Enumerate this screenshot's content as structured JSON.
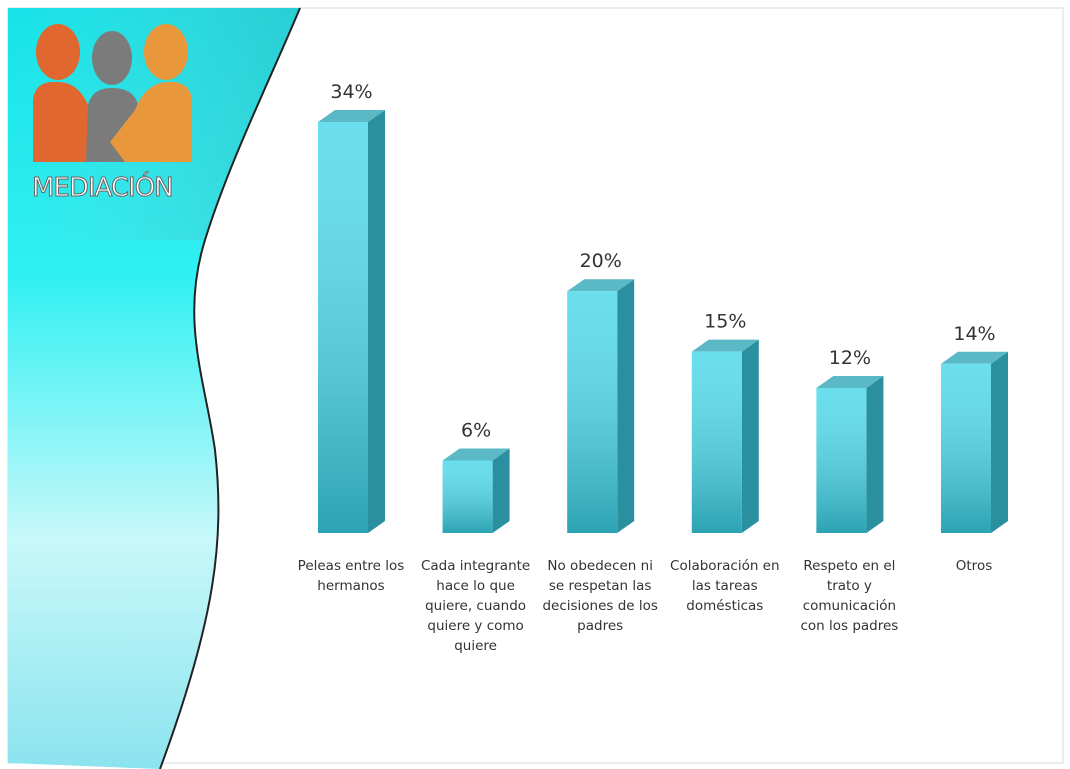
{
  "logo": {
    "text": "MEDIACIÓN"
  },
  "chart_data": {
    "type": "bar3d",
    "categories": [
      "Peleas entre los hermanos",
      "Cada integrante hace lo que quiere, cuando quiere y como quiere",
      "No obedecen ni se respetan las decisiones de los padres",
      "Colaboración en las tareas domésticas",
      "Respeto en el trato y comunicación con los padres",
      "Otros"
    ],
    "values": [
      34,
      6,
      20,
      15,
      12,
      14
    ],
    "value_labels": [
      "34%",
      "6%",
      "20%",
      "15%",
      "12%",
      "14%"
    ],
    "color": "#4fd9ea"
  }
}
